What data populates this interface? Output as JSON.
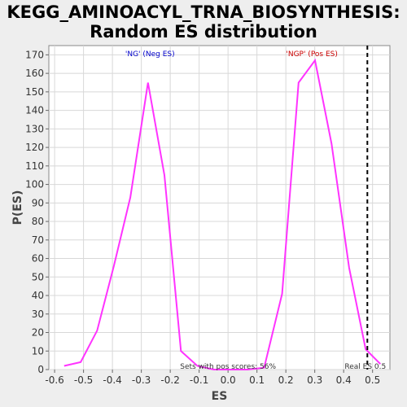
{
  "chart_data": {
    "type": "line",
    "title": [
      "KEGG_AMINOACYL_TRNA_BIOSYNTHESIS:",
      "Random ES distribution"
    ],
    "xlabel": "ES",
    "ylabel": "P(ES)",
    "xlim": [
      -0.62,
      0.56
    ],
    "ylim": [
      0,
      175
    ],
    "xticks": [
      "-0.6",
      "-0.5",
      "-0.4",
      "-0.3",
      "-0.2",
      "-0.1",
      "0.0",
      "0.1",
      "0.2",
      "0.3",
      "0.4",
      "0.5"
    ],
    "yticks": [
      "0",
      "10",
      "20",
      "30",
      "40",
      "50",
      "60",
      "70",
      "80",
      "90",
      "100",
      "110",
      "120",
      "130",
      "140",
      "150",
      "160",
      "170"
    ],
    "series": [
      {
        "color": "#ff33ff",
        "x": [
          -0.567,
          -0.51,
          -0.453,
          -0.395,
          -0.338,
          -0.277,
          -0.22,
          -0.163,
          -0.106,
          -0.049,
          0.008,
          0.068,
          0.125,
          0.187,
          0.244,
          0.301,
          0.358,
          0.419,
          0.476,
          0.527
        ],
        "y": [
          2,
          4,
          21,
          56,
          93,
          155,
          105,
          10,
          2,
          0,
          0,
          0,
          1,
          41,
          155,
          167,
          122,
          55,
          11,
          3
        ]
      }
    ],
    "annotations": {
      "neg_label": "'NG' (Neg ES)",
      "pos_label": "'NGP' (Pos ES)",
      "sets_label": "Sets with pos scores: 56%",
      "real_es_label": "Real ES 0.5",
      "real_es": 0.482
    },
    "colors": {
      "line": "#ff33ff",
      "neg": "#0000cc",
      "pos": "#cc0000",
      "grid": "#d8d8d8"
    },
    "grid": true
  }
}
